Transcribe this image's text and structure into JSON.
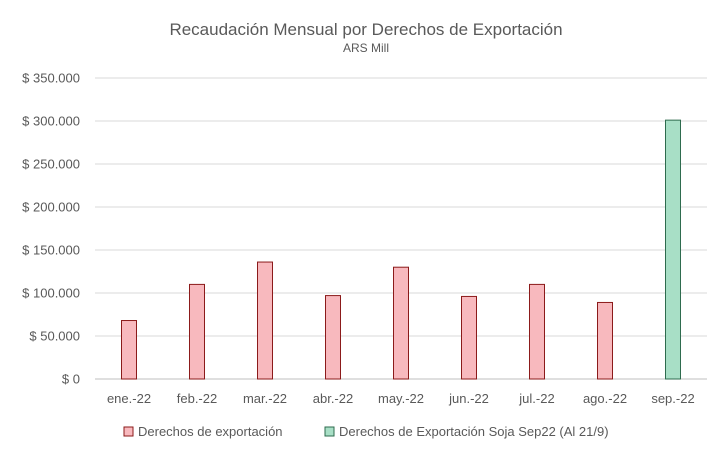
{
  "chart_data": {
    "type": "bar",
    "title": "Recaudación Mensual por Derechos de Exportación",
    "subtitle": "ARS Mill",
    "categories": [
      "ene.-22",
      "feb.-22",
      "mar.-22",
      "abr.-22",
      "may.-22",
      "jun.-22",
      "jul.-22",
      "ago.-22",
      "sep.-22"
    ],
    "series": [
      {
        "name": "Derechos de exportación",
        "values": [
          68000,
          110000,
          136000,
          97000,
          130000,
          96000,
          110000,
          89000,
          null
        ],
        "fill": "#F8B9BE",
        "stroke": "#8B1A1A"
      },
      {
        "name": "Derechos de Exportación Soja Sep22 (Al 21/9)",
        "values": [
          null,
          null,
          null,
          null,
          null,
          null,
          null,
          null,
          301000
        ],
        "fill": "#A8DFC6",
        "stroke": "#2E6B4E"
      }
    ],
    "ylim": [
      0,
      350000
    ],
    "y_ticks": [
      0,
      50000,
      100000,
      150000,
      200000,
      250000,
      300000,
      350000
    ],
    "y_tick_labels": [
      "$ 0",
      "$ 50.000",
      "$ 100.000",
      "$ 150.000",
      "$ 200.000",
      "$ 250.000",
      "$ 300.000",
      "$ 350.000"
    ],
    "grid": true,
    "legend_position": "bottom",
    "colors": {
      "text": "#595959",
      "grid": "#D9D9D9",
      "axis": "#BFBFBF"
    }
  }
}
